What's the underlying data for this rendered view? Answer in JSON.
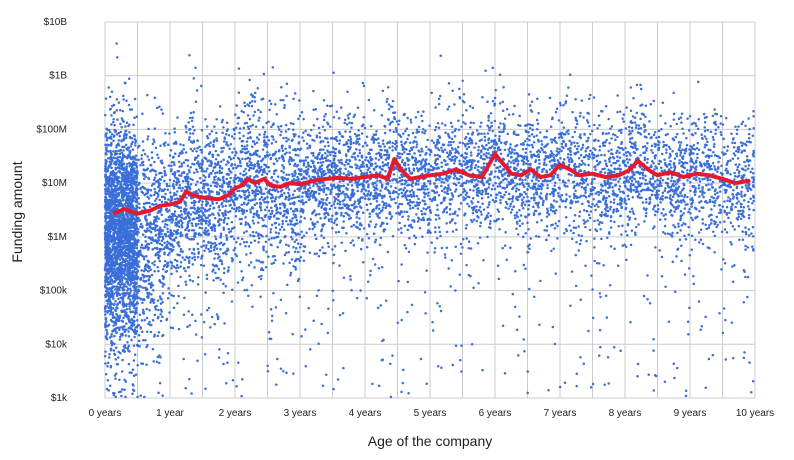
{
  "chart_data": {
    "type": "scatter",
    "title": "",
    "xlabel": "Age of the company",
    "ylabel": "Funding amount",
    "x_unit": "years",
    "y_scale": "log",
    "xlim": [
      0,
      10
    ],
    "ylim": [
      1000,
      10000000000
    ],
    "x_ticks": [
      {
        "value": 0,
        "label": "0 years"
      },
      {
        "value": 1,
        "label": "1 year"
      },
      {
        "value": 2,
        "label": "2 years"
      },
      {
        "value": 3,
        "label": "3 years"
      },
      {
        "value": 4,
        "label": "4 years"
      },
      {
        "value": 5,
        "label": "5 years"
      },
      {
        "value": 6,
        "label": "6 years"
      },
      {
        "value": 7,
        "label": "7 years"
      },
      {
        "value": 8,
        "label": "8 years"
      },
      {
        "value": 9,
        "label": "9 years"
      },
      {
        "value": 10,
        "label": "10 years"
      }
    ],
    "y_ticks": [
      {
        "value": 1000,
        "label": "$1k"
      },
      {
        "value": 10000,
        "label": "$10k"
      },
      {
        "value": 100000,
        "label": "$100k"
      },
      {
        "value": 1000000,
        "label": "$1M"
      },
      {
        "value": 10000000,
        "label": "$10M"
      },
      {
        "value": 100000000,
        "label": "$100M"
      },
      {
        "value": 1000000000,
        "label": "$1B"
      },
      {
        "value": 10000000000,
        "label": "$10B"
      }
    ],
    "grid": true,
    "colors": {
      "points": "#3a6fd8",
      "trend": "#e8192c",
      "grid": "#cccccc"
    },
    "series": [
      {
        "kind": "scatter",
        "note_approx_point_count": 9000
      },
      {
        "kind": "line",
        "x": [
          0.15,
          0.3,
          0.5,
          0.7,
          0.85,
          1.0,
          1.15,
          1.25,
          1.35,
          1.45,
          1.6,
          1.75,
          1.9,
          2.0,
          2.1,
          2.2,
          2.3,
          2.45,
          2.55,
          2.7,
          2.85,
          3.0,
          3.2,
          3.4,
          3.6,
          3.8,
          4.0,
          4.2,
          4.35,
          4.45,
          4.55,
          4.7,
          4.85,
          5.0,
          5.2,
          5.4,
          5.6,
          5.8,
          6.0,
          6.1,
          6.25,
          6.4,
          6.55,
          6.7,
          6.85,
          7.0,
          7.15,
          7.3,
          7.5,
          7.7,
          7.9,
          8.05,
          8.2,
          8.35,
          8.5,
          8.7,
          8.9,
          9.1,
          9.3,
          9.5,
          9.7,
          9.9
        ],
        "y": [
          2800000,
          3300000,
          2700000,
          3100000,
          3800000,
          4000000,
          4500000,
          7000000,
          6000000,
          5500000,
          5200000,
          5000000,
          6000000,
          8000000,
          9000000,
          12000000,
          10000000,
          12000000,
          9000000,
          8500000,
          10000000,
          9500000,
          11000000,
          12000000,
          12500000,
          12000000,
          13000000,
          14000000,
          12000000,
          28000000,
          18000000,
          12000000,
          13000000,
          14000000,
          15000000,
          18000000,
          14000000,
          13000000,
          35000000,
          25000000,
          15000000,
          14000000,
          18000000,
          13000000,
          14000000,
          22000000,
          18000000,
          14000000,
          15000000,
          13000000,
          14000000,
          17000000,
          26000000,
          18000000,
          14000000,
          16000000,
          13000000,
          15000000,
          14000000,
          12000000,
          10000000,
          11000000
        ]
      }
    ]
  }
}
